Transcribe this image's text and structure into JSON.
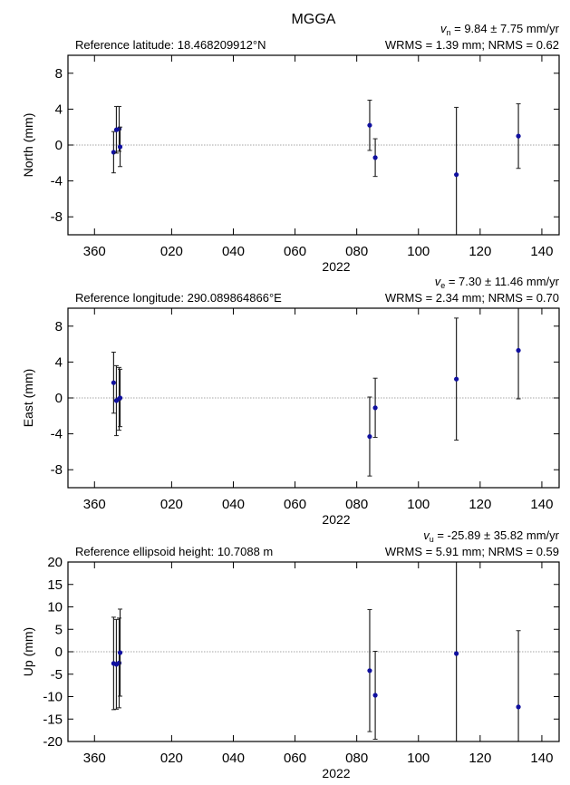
{
  "title": "MGGA",
  "chart_data": [
    {
      "type": "scatter",
      "velocity": {
        "symbol": "v",
        "subscript": "n",
        "text": " = 9.84 ± 7.75 mm/yr"
      },
      "reference": "Reference latitude: 18.468209912°N",
      "stats": "WRMS = 1.39 mm; NRMS = 0.62",
      "y_label": "North (mm)",
      "x_label": "2022",
      "x": [
        1.2,
        2.1,
        3.0,
        3.3,
        84.2,
        86.0,
        112.3,
        132.4
      ],
      "series": [
        {
          "color": "#1010a0",
          "values": [
            -0.8,
            1.7,
            1.8,
            -0.2,
            2.2,
            -1.4,
            -3.3,
            1.0
          ],
          "errors": [
            2.3,
            2.6,
            2.5,
            2.2,
            2.8,
            2.1,
            7.5,
            3.6
          ]
        }
      ],
      "xlim": [
        -13.6,
        145.6
      ],
      "ylim": [
        -10,
        10
      ],
      "xticks": [
        {
          "value": -5,
          "label": "360"
        },
        {
          "value": 20,
          "label": "020"
        },
        {
          "value": 40,
          "label": "040"
        },
        {
          "value": 60,
          "label": "060"
        },
        {
          "value": 80,
          "label": "080"
        },
        100,
        120,
        140
      ],
      "yticks": [
        -8,
        -4,
        0,
        4,
        8
      ]
    },
    {
      "type": "scatter",
      "velocity": {
        "symbol": "v",
        "subscript": "e",
        "text": " = 7.30 ± 11.46 mm/yr"
      },
      "reference": "Reference longitude: 290.089864866°E",
      "stats": "WRMS = 2.34 mm; NRMS = 0.70",
      "y_label": "East (mm)",
      "x_label": "2022",
      "x": [
        1.2,
        2.1,
        3.0,
        3.3,
        84.2,
        86.0,
        112.3,
        132.4
      ],
      "series": [
        {
          "color": "#1010a0",
          "values": [
            1.7,
            -0.3,
            -0.1,
            0.0,
            -4.3,
            -1.1,
            2.1,
            5.3
          ],
          "errors": [
            3.4,
            3.9,
            3.5,
            3.2,
            4.4,
            3.3,
            6.8,
            5.4
          ]
        }
      ],
      "xlim": [
        -13.6,
        145.6
      ],
      "ylim": [
        -10,
        10
      ],
      "xticks": [
        {
          "value": -5,
          "label": "360"
        },
        {
          "value": 20,
          "label": "020"
        },
        {
          "value": 40,
          "label": "040"
        },
        {
          "value": 60,
          "label": "060"
        },
        {
          "value": 80,
          "label": "080"
        },
        100,
        120,
        140
      ],
      "yticks": [
        -8,
        -4,
        0,
        4,
        8
      ]
    },
    {
      "type": "scatter",
      "velocity": {
        "symbol": "v",
        "subscript": "u",
        "text": " = -25.89 ± 35.82 mm/yr"
      },
      "reference": "Reference ellipsoid height: 10.7088 m",
      "stats": "WRMS = 5.91 mm; NRMS = 0.59",
      "y_label": "Up (mm)",
      "x_label": "2022",
      "x": [
        1.2,
        2.1,
        3.0,
        3.3,
        84.2,
        86.0,
        112.3,
        132.4
      ],
      "series": [
        {
          "color": "#1010a0",
          "values": [
            -2.6,
            -2.8,
            -2.5,
            -0.2,
            -4.2,
            -9.7,
            -0.4,
            -12.3
          ],
          "errors": [
            10.3,
            10.0,
            10.0,
            9.7,
            13.6,
            9.8,
            21.0,
            17.0
          ]
        }
      ],
      "xlim": [
        -13.6,
        145.6
      ],
      "ylim": [
        -20,
        20
      ],
      "xticks": [
        {
          "value": -5,
          "label": "360"
        },
        {
          "value": 20,
          "label": "020"
        },
        {
          "value": 40,
          "label": "040"
        },
        {
          "value": 60,
          "label": "060"
        },
        {
          "value": 80,
          "label": "080"
        },
        100,
        120,
        140
      ],
      "yticks": [
        -20,
        -15,
        -10,
        -5,
        0,
        5,
        10,
        15,
        20
      ]
    }
  ]
}
